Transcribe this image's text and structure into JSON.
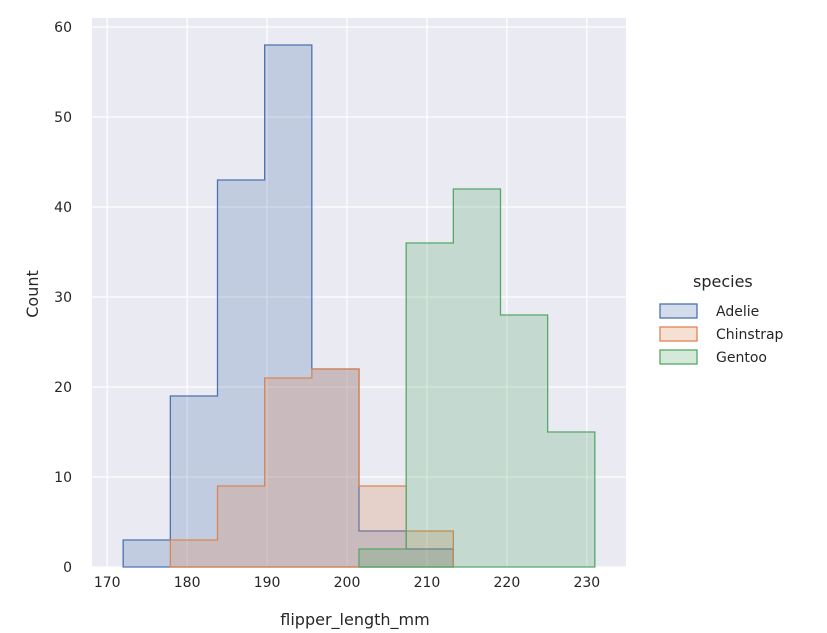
{
  "chart_data": {
    "type": "histogram",
    "element": "step",
    "xlabel": "flipper_length_mm",
    "ylabel": "Count",
    "xlim": [
      168.1,
      234.9
    ],
    "ylim": [
      0,
      61
    ],
    "x_ticks": [
      170,
      180,
      190,
      200,
      210,
      220,
      230
    ],
    "y_ticks": [
      0,
      10,
      20,
      30,
      40,
      50,
      60
    ],
    "bin_edges": [
      172.0,
      177.9,
      183.8,
      189.7,
      195.6,
      201.5,
      207.4,
      213.3,
      219.2,
      225.1,
      231.0
    ],
    "grid": true,
    "legend": {
      "title": "species",
      "placement": "right"
    },
    "series": [
      {
        "name": "Adelie",
        "color": "#4c72b0",
        "fill": "rgba(76,114,176,0.25)",
        "counts": [
          3,
          19,
          43,
          58,
          22,
          4,
          2,
          0,
          0,
          0
        ]
      },
      {
        "name": "Chinstrap",
        "color": "#dd8452",
        "fill": "rgba(221,132,82,0.25)",
        "counts": [
          0,
          3,
          9,
          21,
          22,
          9,
          4,
          0,
          0,
          0
        ]
      },
      {
        "name": "Gentoo",
        "color": "#55a868",
        "fill": "rgba(85,168,104,0.25)",
        "counts": [
          0,
          0,
          0,
          0,
          0,
          2,
          36,
          42,
          28,
          15
        ]
      }
    ]
  }
}
